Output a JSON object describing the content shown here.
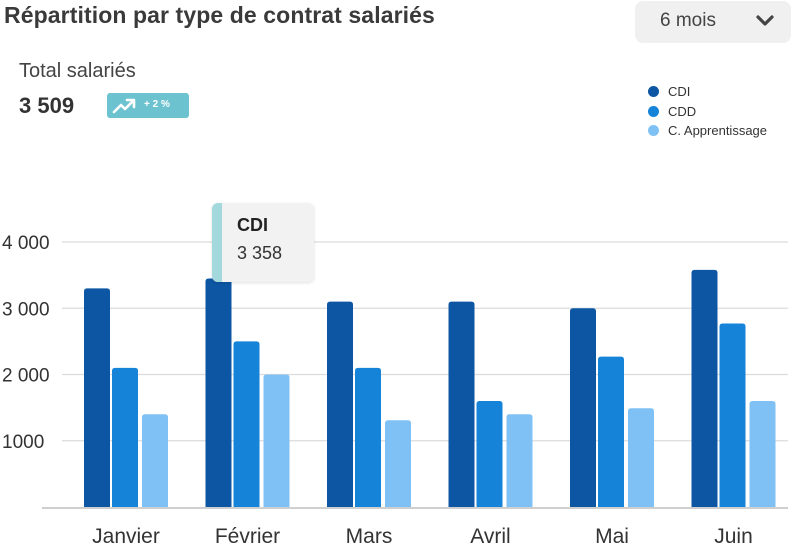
{
  "header": {
    "title": "Répartition par type de contrat salariés",
    "period_select": {
      "value": "6 mois",
      "icon": "chevron-down-icon"
    }
  },
  "summary": {
    "label": "Total salariés",
    "value": "3 509",
    "trend": {
      "text": "+ 2 %",
      "icon": "trend-up-icon",
      "color": "#6cc3cf"
    }
  },
  "tooltip": {
    "series": "CDI",
    "value": "3 358"
  },
  "chart_data": {
    "type": "bar",
    "categories": [
      "Janvier",
      "Février",
      "Mars",
      "Avril",
      "Mai",
      "Juin"
    ],
    "series": [
      {
        "name": "CDI",
        "color": "#0c56a3",
        "values": [
          3300,
          3450,
          3100,
          3100,
          3000,
          3580
        ]
      },
      {
        "name": "CDD",
        "color": "#1583d8",
        "values": [
          2100,
          2500,
          2100,
          1600,
          2270,
          2770
        ]
      },
      {
        "name": "C. Apprentissage",
        "color": "#7fc1f5",
        "values": [
          1400,
          2000,
          1310,
          1400,
          1490,
          1600
        ]
      }
    ],
    "ylim": [
      0,
      4000
    ],
    "yticks": [
      {
        "value": 1000,
        "label": "1000"
      },
      {
        "value": 2000,
        "label": "2 000"
      },
      {
        "value": 3000,
        "label": "3 000"
      },
      {
        "value": 4000,
        "label": "4 000"
      }
    ],
    "grid": true,
    "legend": "top-right"
  }
}
